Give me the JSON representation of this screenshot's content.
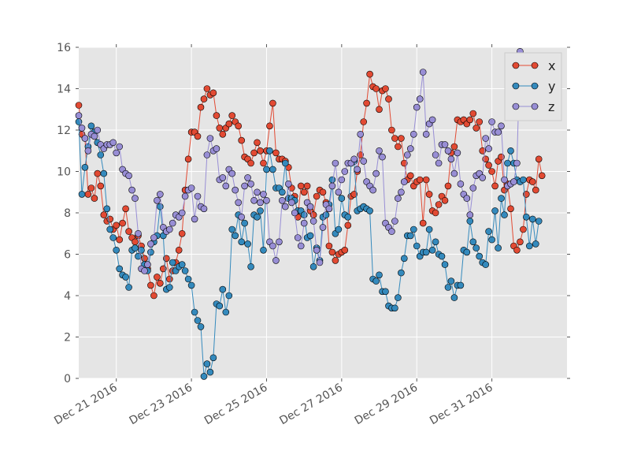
{
  "chart_data": {
    "type": "line",
    "title": "",
    "xlabel": "",
    "ylabel": "",
    "x_start": "2016-12-20",
    "x_step_hours": 2,
    "xlim": [
      "2016-12-20",
      "2017-01-02"
    ],
    "ylim": [
      0,
      16
    ],
    "grid": true,
    "legend_position": "top-right",
    "y_ticks": [
      0,
      2,
      4,
      6,
      8,
      10,
      12,
      14,
      16
    ],
    "x_ticks": [
      {
        "date": "2016-12-21",
        "label": "Dec 21 2016"
      },
      {
        "date": "2016-12-23",
        "label": "Dec 23 2016"
      },
      {
        "date": "2016-12-25",
        "label": "Dec 25 2016"
      },
      {
        "date": "2016-12-27",
        "label": "Dec 27 2016"
      },
      {
        "date": "2016-12-29",
        "label": "Dec 29 2016"
      },
      {
        "date": "2016-12-31",
        "label": "Dec 31 2016"
      }
    ],
    "series": [
      {
        "name": "x",
        "color": "#e24a33",
        "values": [
          13.2,
          11.8,
          11.6,
          8.9,
          9.2,
          8.7,
          9.9,
          9.3,
          7.9,
          7.6,
          7.7,
          7.2,
          7.4,
          6.7,
          7.5,
          8.2,
          7.1,
          6.8,
          6.6,
          6.9,
          6.4,
          5.8,
          5.3,
          4.5,
          4.0,
          4.9,
          4.6,
          5.3,
          5.8,
          4.8,
          5.2,
          5.6,
          6.2,
          7.0,
          9.1,
          10.6,
          11.9,
          11.9,
          11.7,
          13.1,
          13.5,
          14.0,
          13.7,
          13.8,
          12.7,
          12.1,
          11.8,
          12.1,
          12.3,
          12.7,
          12.4,
          12.2,
          11.5,
          10.7,
          10.6,
          10.4,
          10.9,
          11.4,
          11.0,
          10.4,
          11.0,
          12.2,
          13.3,
          10.9,
          10.6,
          10.6,
          10.5,
          10.2,
          9.2,
          8.8,
          7.8,
          9.3,
          9.0,
          9.3,
          8.1,
          7.9,
          8.8,
          9.1,
          9.0,
          8.5,
          6.4,
          6.1,
          5.7,
          6.0,
          6.1,
          6.2,
          7.4,
          8.8,
          8.9,
          10.0,
          10.8,
          12.4,
          13.3,
          14.7,
          14.1,
          14.0,
          13.0,
          13.9,
          14.0,
          13.5,
          12.0,
          11.6,
          11.2,
          11.6,
          10.4,
          9.6,
          9.8,
          9.3,
          9.5,
          9.6,
          7.5,
          9.6,
          8.9,
          8.1,
          8.0,
          8.4,
          8.8,
          8.6,
          9.3,
          10.9,
          11.2,
          12.5,
          12.4,
          12.5,
          12.3,
          12.5,
          12.8,
          12.1,
          12.4,
          11.0,
          10.6,
          10.3,
          10.0,
          9.3,
          10.5,
          10.7,
          9.1,
          9.4,
          8.2,
          6.4,
          6.2,
          6.6,
          7.2,
          8.9,
          9.6,
          9.5,
          9.1,
          10.6,
          9.8
        ]
      },
      {
        "name": "y",
        "color": "#348abd",
        "values": [
          12.4,
          8.9,
          10.2,
          11.2,
          12.2,
          11.9,
          11.4,
          10.8,
          9.9,
          8.2,
          7.2,
          6.8,
          6.2,
          5.3,
          5.0,
          4.9,
          4.4,
          6.2,
          6.3,
          5.9,
          6.2,
          5.5,
          5.2,
          6.1,
          6.6,
          6.9,
          8.3,
          6.9,
          4.3,
          4.4,
          5.6,
          5.2,
          5.4,
          5.5,
          5.2,
          4.8,
          4.5,
          3.2,
          2.8,
          2.5,
          0.1,
          0.7,
          0.3,
          1.0,
          3.6,
          3.5,
          4.3,
          3.2,
          4.0,
          7.2,
          6.9,
          7.9,
          6.6,
          7.5,
          6.5,
          5.4,
          7.9,
          7.8,
          8.1,
          6.2,
          10.1,
          11.0,
          10.1,
          9.2,
          9.2,
          9.0,
          10.4,
          8.7,
          8.7,
          8.6,
          8.1,
          8.1,
          7.9,
          6.8,
          6.9,
          5.4,
          6.3,
          5.7,
          7.8,
          7.9,
          8.4,
          9.6,
          7.0,
          7.2,
          8.7,
          7.9,
          7.8,
          10.4,
          10.5,
          8.1,
          8.2,
          8.3,
          8.2,
          8.1,
          4.8,
          4.7,
          5.0,
          4.2,
          4.2,
          3.5,
          3.4,
          3.4,
          3.9,
          5.1,
          5.8,
          6.9,
          6.9,
          7.2,
          6.4,
          5.9,
          6.1,
          6.1,
          7.2,
          6.2,
          6.6,
          6.0,
          5.9,
          5.5,
          4.4,
          4.7,
          3.9,
          4.5,
          4.5,
          6.2,
          6.1,
          7.6,
          6.6,
          6.3,
          5.9,
          5.6,
          5.5,
          7.1,
          6.7,
          8.1,
          6.3,
          8.7,
          7.9,
          10.4,
          11.0,
          10.4,
          9.6,
          9.5,
          9.6,
          7.8,
          6.4,
          7.7,
          6.5,
          7.6
        ]
      },
      {
        "name": "z",
        "color": "#988ed5",
        "values": [
          12.7,
          12.1,
          11.6,
          11.0,
          11.8,
          11.7,
          12.0,
          11.3,
          11.1,
          11.3,
          11.3,
          11.4,
          10.9,
          11.2,
          10.1,
          9.9,
          9.8,
          9.1,
          8.7,
          7.0,
          5.3,
          5.2,
          5.5,
          6.5,
          6.8,
          8.6,
          8.9,
          7.3,
          7.1,
          7.2,
          7.5,
          7.9,
          7.8,
          8.0,
          8.8,
          9.1,
          9.2,
          7.7,
          8.8,
          8.3,
          8.2,
          10.8,
          11.6,
          11.0,
          11.1,
          9.6,
          9.7,
          9.3,
          10.1,
          9.9,
          9.1,
          8.5,
          7.8,
          9.3,
          9.7,
          9.4,
          8.6,
          9.0,
          8.5,
          8.9,
          8.6,
          6.6,
          6.4,
          5.7,
          6.6,
          8.6,
          8.3,
          9.4,
          8.5,
          8.0,
          6.8,
          6.4,
          7.5,
          8.5,
          8.3,
          7.6,
          6.2,
          5.6,
          7.3,
          8.4,
          8.2,
          9.3,
          10.4,
          9.0,
          9.6,
          10.0,
          10.4,
          10.4,
          10.6,
          10.1,
          11.8,
          10.5,
          9.5,
          9.3,
          9.1,
          9.9,
          11.0,
          10.7,
          7.5,
          7.3,
          7.1,
          7.6,
          8.7,
          9.0,
          9.5,
          10.8,
          11.1,
          11.8,
          13.1,
          13.5,
          14.8,
          11.8,
          12.3,
          12.5,
          10.8,
          10.4,
          11.3,
          11.3,
          11.0,
          10.6,
          9.9,
          10.9,
          9.4,
          8.9,
          8.7,
          7.9,
          9.2,
          9.8,
          9.9,
          9.7,
          11.6,
          11.1,
          12.4,
          11.9,
          11.9,
          12.2,
          9.6,
          9.3,
          9.4,
          9.5,
          10.4,
          15.8,
          14.0,
          13.7,
          12.7
        ]
      }
    ]
  }
}
